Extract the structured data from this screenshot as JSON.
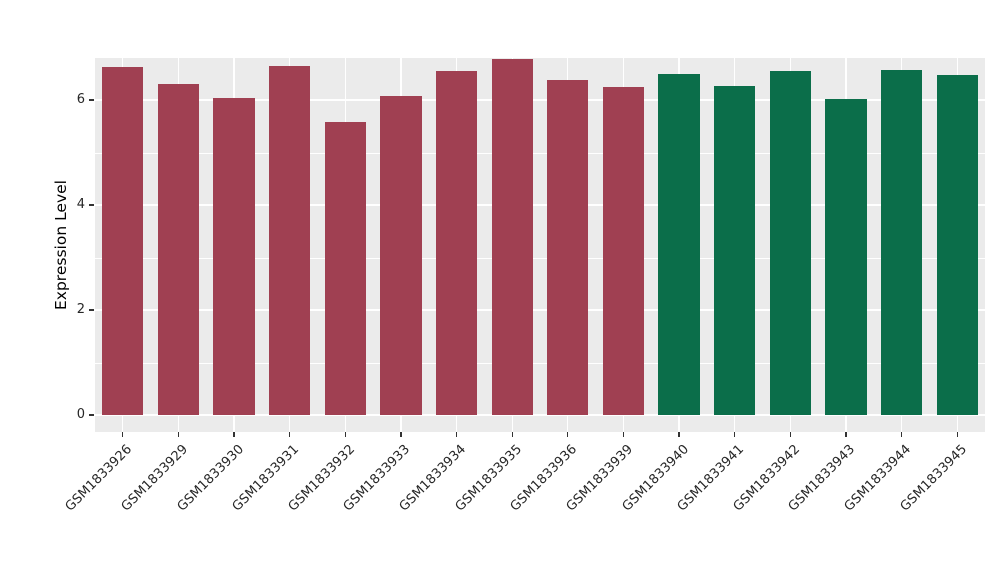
{
  "chart_data": {
    "type": "bar",
    "title": "",
    "xlabel": "",
    "ylabel": "Expression Level",
    "categories": [
      "GSM1833926",
      "GSM1833929",
      "GSM1833930",
      "GSM1833931",
      "GSM1833932",
      "GSM1833933",
      "GSM1833934",
      "GSM1833935",
      "GSM1833936",
      "GSM1833939",
      "GSM1833940",
      "GSM1833941",
      "GSM1833942",
      "GSM1833943",
      "GSM1833944",
      "GSM1833945"
    ],
    "values": [
      6.62,
      6.3,
      6.04,
      6.65,
      5.58,
      6.07,
      6.56,
      6.78,
      6.39,
      6.25,
      6.5,
      6.27,
      6.56,
      6.01,
      6.58,
      6.48
    ],
    "bar_colors": [
      "#A04052",
      "#A04052",
      "#A04052",
      "#A04052",
      "#A04052",
      "#A04052",
      "#A04052",
      "#A04052",
      "#A04052",
      "#A04052",
      "#0B6E4A",
      "#0B6E4A",
      "#0B6E4A",
      "#0B6E4A",
      "#0B6E4A",
      "#0B6E4A"
    ],
    "group_colors": {
      "first_ten": "#A04052",
      "last_six": "#0B6E4A"
    },
    "ylim": [
      0,
      6.8
    ],
    "yticks": [
      0,
      2,
      4,
      6
    ],
    "minor_yticks": [
      1,
      3,
      5
    ],
    "grid": true,
    "legend_position": "none",
    "panel_background": "#EBEBEB",
    "gridline_color": "#FFFFFF"
  }
}
